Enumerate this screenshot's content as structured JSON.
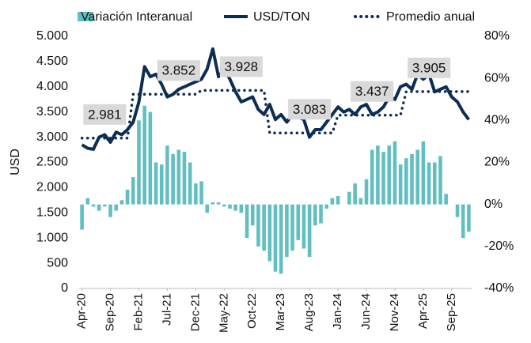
{
  "chart_data": {
    "type": "combo",
    "y_label": "USD",
    "categories": [
      "Apr-20",
      null,
      null,
      null,
      null,
      "Sep-20",
      null,
      null,
      null,
      null,
      "Feb-21",
      null,
      null,
      null,
      null,
      "Jul-21",
      null,
      null,
      null,
      null,
      "Dec-21",
      null,
      null,
      null,
      null,
      "May-22",
      null,
      null,
      null,
      null,
      "Oct-22",
      null,
      null,
      null,
      null,
      "Mar-23",
      null,
      null,
      null,
      null,
      "Aug-23",
      null,
      null,
      null,
      null,
      "Jan-24",
      null,
      null,
      null,
      null,
      "Jun-24",
      null,
      null,
      null,
      null,
      "Nov-24",
      null,
      null,
      null,
      null,
      "Apr-25",
      null,
      null,
      null,
      null,
      "Sep-25",
      null,
      null,
      null
    ],
    "ylim": [
      0,
      5000
    ],
    "yticks": [
      0,
      500,
      {
        "value": 1000,
        "label": "1.000"
      },
      {
        "value": 1500,
        "label": "1.500"
      },
      {
        "value": 2000,
        "label": "2.000"
      },
      {
        "value": 2500,
        "label": "2.500"
      },
      {
        "value": 3000,
        "label": "3.000"
      },
      {
        "value": 3500,
        "label": "3.500"
      },
      {
        "value": 4000,
        "label": "4.000"
      },
      {
        "value": 4500,
        "label": "4.500"
      },
      {
        "value": 5000,
        "label": "5.000"
      }
    ],
    "y2lim": [
      -40,
      80
    ],
    "y2ticks": [
      {
        "value": -40,
        "label": "-40%"
      },
      {
        "value": -20,
        "label": "-20%"
      },
      {
        "value": 0,
        "label": "0%"
      },
      {
        "value": 20,
        "label": "20%"
      },
      {
        "value": 40,
        "label": "40%"
      },
      {
        "value": 60,
        "label": "60%"
      },
      {
        "value": 80,
        "label": "80%"
      }
    ],
    "series": [
      {
        "name": "Variación Interanual",
        "kind": "bar",
        "axis": "y2",
        "color": "#62bfc1",
        "values": [
          -12,
          3,
          -1,
          -3,
          -1,
          -6,
          -3,
          2,
          7,
          13,
          40,
          47,
          44,
          20,
          19,
          28,
          24,
          26,
          25,
          20,
          10,
          11,
          -4,
          1,
          1,
          -1,
          -2,
          -3,
          -4,
          -16,
          -10,
          -20,
          -22,
          -27,
          -32,
          -33,
          -25,
          -22,
          -17,
          -21,
          -25,
          -10,
          -9,
          -2,
          3,
          4,
          0,
          6,
          10,
          3,
          12,
          26,
          28,
          25,
          28,
          30,
          19,
          22,
          24,
          26,
          30,
          20,
          20,
          23,
          5,
          0,
          -6,
          -16,
          -13
        ]
      },
      {
        "name": "USD/TON",
        "kind": "line",
        "color": "#0d2d52",
        "values": [
          2850,
          2780,
          2760,
          3000,
          3050,
          2900,
          3100,
          3050,
          3150,
          3300,
          3700,
          4400,
          4200,
          4250,
          4050,
          3800,
          3850,
          3950,
          4000,
          4050,
          4100,
          4150,
          4350,
          4750,
          4200,
          4350,
          4150,
          3900,
          3700,
          3750,
          3800,
          3550,
          3450,
          3650,
          3350,
          3450,
          3300,
          3450,
          3400,
          3350,
          3000,
          3150,
          3150,
          3300,
          3450,
          3600,
          3500,
          3550,
          3450,
          3600,
          3650,
          3450,
          3500,
          3600,
          3800,
          3750,
          4000,
          4050,
          3950,
          4250,
          4150,
          4250,
          3900,
          3950,
          4000,
          3800,
          3700,
          3500,
          3350
        ]
      },
      {
        "name": "Promedio anual",
        "kind": "dotted",
        "color": "#0d2d52",
        "values": [
          2981,
          2981,
          2981,
          2981,
          2981,
          2981,
          2981,
          2981,
          2981,
          3852,
          3852,
          3852,
          3852,
          3852,
          3852,
          3852,
          3852,
          3852,
          3852,
          3852,
          3852,
          3928,
          3928,
          3928,
          3928,
          3928,
          3928,
          3928,
          3928,
          3928,
          3928,
          3928,
          3928,
          3083,
          3083,
          3083,
          3083,
          3083,
          3083,
          3083,
          3083,
          3083,
          3083,
          3083,
          3083,
          3437,
          3437,
          3437,
          3437,
          3437,
          3437,
          3437,
          3437,
          3437,
          3437,
          3437,
          3437,
          3905,
          3905,
          3905,
          3905,
          3905,
          3905,
          3905,
          3905,
          3905,
          3905,
          3905,
          3905
        ],
        "value_labels": [
          null,
          null,
          null,
          null,
          "2.981",
          null,
          null,
          null,
          null,
          null,
          null,
          null,
          null,
          null,
          null,
          null,
          null,
          "3.852",
          null,
          null,
          null,
          null,
          null,
          null,
          null,
          null,
          null,
          null,
          "3.928",
          null,
          null,
          null,
          null,
          null,
          null,
          null,
          null,
          null,
          null,
          null,
          "3.083",
          null,
          null,
          null,
          null,
          null,
          null,
          null,
          null,
          null,
          null,
          "3.437",
          null,
          null,
          null,
          null,
          null,
          null,
          null,
          null,
          null,
          "3.905",
          null,
          null,
          null,
          null,
          null,
          null,
          null
        ]
      }
    ]
  }
}
